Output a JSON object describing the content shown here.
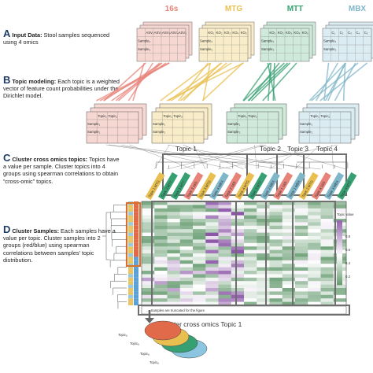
{
  "steps": [
    {
      "letter": "A",
      "heading": "Input Data:",
      "text": " Stool samples sequenced using 4 omics"
    },
    {
      "letter": "B",
      "heading": "Topic modeling:",
      "text": " Each topic is a weighted vector of feature count probabilities under the Dirichlet model."
    },
    {
      "letter": "C",
      "heading": "Cluster cross omics topics:",
      "text": " Topics have a value per sample. Cluster topics into 4 groups using spearman correlations to obtain “cross-omic” topics."
    },
    {
      "letter": "D",
      "heading": "Cluster Samples:",
      "text": " Each samples have a value per topic. Cluster samples into 2 groups (red/blue) using spearman correlations between samples' topic distribution."
    }
  ],
  "omics": [
    {
      "name": "16s",
      "color": "#e8837a",
      "fill": "#f6d7d2",
      "feature_prefix": "ASV",
      "features": [
        "ASV₁",
        "ASV₂",
        "ASV₃",
        "ASV₄",
        "ASV₅"
      ],
      "sample_labels": [
        "Sample₁",
        "Sample₂"
      ]
    },
    {
      "name": "MTG",
      "color": "#e9c04f",
      "fill": "#f8edc8",
      "features": [
        "KO₁",
        "KO₂",
        "KO₃",
        "KO₄",
        "KO₅"
      ],
      "sample_labels": [
        "Sample₁",
        "Sample₂"
      ]
    },
    {
      "name": "MTT",
      "color": "#37a073",
      "fill": "#cfe9da",
      "features": [
        "KO₁",
        "KO₂",
        "KO₃",
        "KO₄",
        "KO₅"
      ],
      "sample_labels": [
        "Sample₁",
        "Sample₂"
      ]
    },
    {
      "name": "MBX",
      "color": "#7fb6c9",
      "fill": "#dbecf2",
      "features": [
        "C₁",
        "C₂",
        "C₃",
        "C₄",
        "C₅"
      ],
      "sample_labels": [
        "Sample₁",
        "Sample₂"
      ]
    }
  ],
  "topic_tables": {
    "topic_labels": [
      "Topic₁",
      "Topic₂"
    ],
    "sample_labels": [
      "Sample₁",
      "Sample₂"
    ]
  },
  "cross_omic_topics": [
    "Topic 1",
    "Topic 2",
    "Topic 3",
    "Topic 4"
  ],
  "heatmap_columns": [
    {
      "label": "Topic 1 MTG",
      "omic": "MTG"
    },
    {
      "label": "Topic 2 MTT",
      "omic": "MTT"
    },
    {
      "label": "Topic 1 MTT",
      "omic": "MTT"
    },
    {
      "label": "Topic 3 16S",
      "omic": "16s"
    },
    {
      "label": "Topic 3 MTG",
      "omic": "MTG"
    },
    {
      "label": "Topic 4 MBX",
      "omic": "MBX"
    },
    {
      "label": "Topic 2 16S",
      "omic": "16s"
    },
    {
      "label": "Topic 4 MTG",
      "omic": "MTG"
    },
    {
      "label": "Topic 3 MTT",
      "omic": "MTT"
    },
    {
      "label": "Topic 2 MBX",
      "omic": "MBX"
    },
    {
      "label": "Topic 1 16S",
      "omic": "16s"
    },
    {
      "label": "Topic 1 MBX",
      "omic": "MBX"
    },
    {
      "label": "Topic 2 MTG",
      "omic": "MTG"
    },
    {
      "label": "Topic 4 16S",
      "omic": "16s"
    },
    {
      "label": "Topic 3 MBX",
      "omic": "MBX"
    },
    {
      "label": "Topic 4 MTT",
      "omic": "MTT"
    }
  ],
  "legend": {
    "title": "Topic value",
    "ticks": [
      "0.8",
      "0.6",
      "0.4",
      "0.2"
    ]
  },
  "footnote": "Samples are truncated for the figure",
  "cluster_title": "Cluster cross omics Topic 1",
  "stack_labels": [
    "Topicₐ",
    "Topicₐ",
    "Topicₐ",
    "Topicₐ"
  ],
  "colors": {
    "purple": "#7b3f9a",
    "green_dark": "#1b6b2a",
    "sample_red": "#e16a4a",
    "sample_blue": "#5aa1d6",
    "box_orange": "#d9712c",
    "box_grey": "#7d7d7d"
  }
}
